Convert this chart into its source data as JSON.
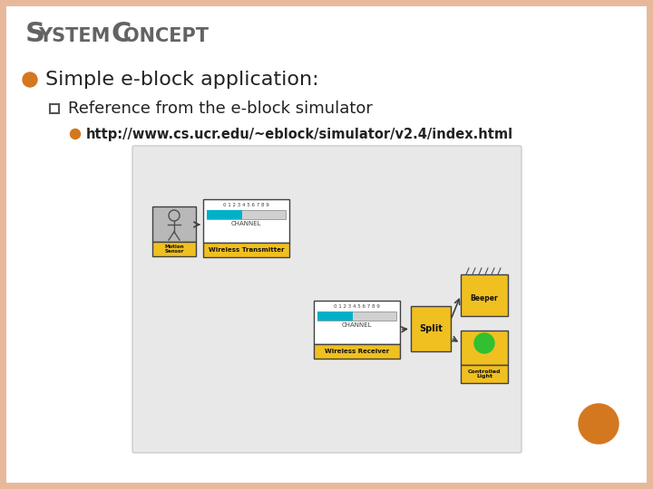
{
  "title_S": "S",
  "title_ystem": "YSTEM ",
  "title_C": "C",
  "title_oncept": "ONCEPT",
  "bullet1": "Simple e-block application:",
  "bullet2": "Reference from the e-block simulator",
  "bullet3": "http://www.cs.ucr.edu/~eblock/simulator/v2.4/index.html",
  "bg_color": "#FFFFFF",
  "slide_border_color": "#E8B89A",
  "title_color": "#636363",
  "text_color": "#222222",
  "orange_dot_color": "#D47820",
  "diagram_bg": "#E8E8E8",
  "diagram_border": "#CCCCCC",
  "yellow_block": "#F0C020",
  "gray_block": "#B8B8B8",
  "cyan_bar": "#00B0C8",
  "green_light": "#30C030",
  "arrow_color": "#404040",
  "white": "#FFFFFF"
}
